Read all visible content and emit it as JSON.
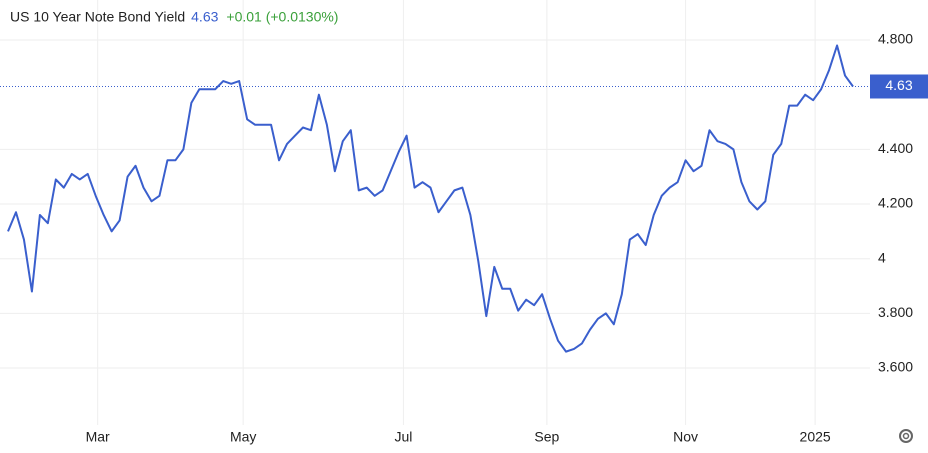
{
  "chart_data": {
    "type": "line",
    "title": "US 10 Year Note Bond Yield",
    "last_value": 4.63,
    "change_label": "+0.01 (+0.0130%)",
    "series": [
      {
        "color": "#3a5fcd",
        "values": [
          4.1,
          4.17,
          4.07,
          3.88,
          4.16,
          4.13,
          4.29,
          4.26,
          4.31,
          4.29,
          4.31,
          4.23,
          4.16,
          4.1,
          4.14,
          4.3,
          4.34,
          4.26,
          4.21,
          4.23,
          4.36,
          4.36,
          4.4,
          4.57,
          4.62,
          4.62,
          4.62,
          4.65,
          4.64,
          4.65,
          4.51,
          4.49,
          4.49,
          4.49,
          4.36,
          4.42,
          4.45,
          4.48,
          4.47,
          4.6,
          4.49,
          4.32,
          4.43,
          4.47,
          4.25,
          4.26,
          4.23,
          4.25,
          4.32,
          4.39,
          4.45,
          4.26,
          4.28,
          4.26,
          4.17,
          4.21,
          4.25,
          4.26,
          4.16,
          3.99,
          3.79,
          3.97,
          3.89,
          3.89,
          3.81,
          3.85,
          3.83,
          3.87,
          3.78,
          3.7,
          3.66,
          3.67,
          3.69,
          3.74,
          3.78,
          3.8,
          3.76,
          3.87,
          4.07,
          4.09,
          4.05,
          4.16,
          4.23,
          4.26,
          4.28,
          4.36,
          4.32,
          4.34,
          4.47,
          4.43,
          4.42,
          4.4,
          4.28,
          4.21,
          4.18,
          4.21,
          4.38,
          4.42,
          4.56,
          4.56,
          4.6,
          4.58,
          4.62,
          4.69,
          4.78,
          4.67,
          4.63
        ]
      }
    ],
    "xlim": [
      0,
      106
    ],
    "xticks": [
      {
        "value": 11.25,
        "label": "Mar"
      },
      {
        "value": 29.5,
        "label": "May"
      },
      {
        "value": 49.6,
        "label": "Jul"
      },
      {
        "value": 67.6,
        "label": "Sep"
      },
      {
        "value": 85,
        "label": "Nov"
      },
      {
        "value": 101.25,
        "label": "2025"
      }
    ],
    "ylim": [
      3.4,
      4.9
    ],
    "yticks": [
      {
        "value": 3.6,
        "label": "3.600"
      },
      {
        "value": 3.8,
        "label": "3.800"
      },
      4,
      {
        "value": 4.2,
        "label": "4.200"
      },
      {
        "value": 4.4,
        "label": "4.400"
      },
      {
        "value": 4.8,
        "label": "4.800"
      }
    ],
    "grid": true
  }
}
